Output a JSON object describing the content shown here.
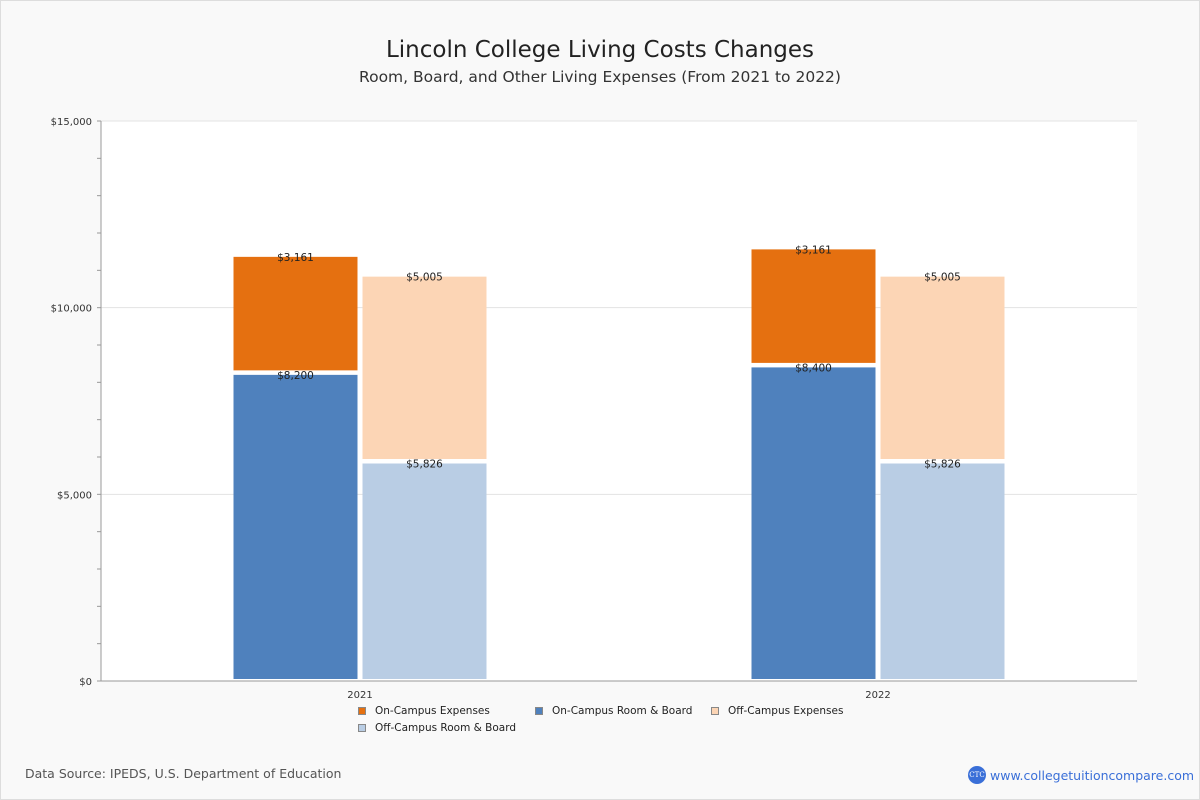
{
  "chart_data": {
    "type": "bar",
    "stacked": true,
    "title": "Lincoln College Living Costs Changes",
    "subtitle": "Room, Board, and Other Living Expenses (From 2021 to 2022)",
    "categories": [
      "2021",
      "2022"
    ],
    "ylim": [
      0,
      15000
    ],
    "yticks": [
      "$0",
      "$5,000",
      "$10,000",
      "$15,000"
    ],
    "ytick_values": [
      0,
      5000,
      10000,
      15000
    ],
    "series": [
      {
        "name": "On-Campus Room & Board",
        "stack": "on",
        "color": "#4f81bd",
        "values": [
          8200,
          8400
        ],
        "labels": [
          "$8,200",
          "$8,400"
        ]
      },
      {
        "name": "On-Campus Expenses",
        "stack": "on",
        "color": "#e57010",
        "values": [
          3161,
          3161
        ],
        "labels": [
          "$3,161",
          "$3,161"
        ]
      },
      {
        "name": "Off-Campus Room & Board",
        "stack": "off",
        "color": "#b9cde4",
        "values": [
          5826,
          5826
        ],
        "labels": [
          "$5,826",
          "$5,826"
        ]
      },
      {
        "name": "Off-Campus Expenses",
        "stack": "off",
        "color": "#fcd5b5",
        "values": [
          5005,
          5005
        ],
        "labels": [
          "$5,005",
          "$5,005"
        ]
      }
    ],
    "legend": [
      "On-Campus Expenses",
      "On-Campus Room & Board",
      "Off-Campus Expenses",
      "Off-Campus Room & Board"
    ],
    "legend_position": "bottom",
    "grid": true
  },
  "footer": {
    "source": "Data Source: IPEDS, U.S. Department of Education",
    "brand": "www.collegetuitioncompare.com",
    "logo_text": "CTC"
  }
}
